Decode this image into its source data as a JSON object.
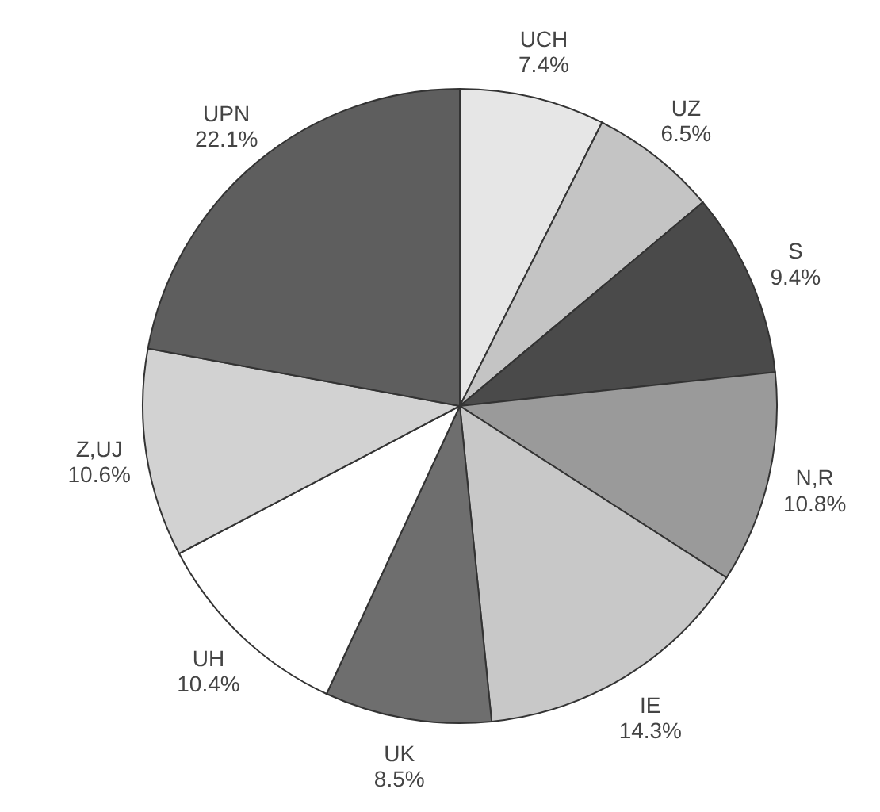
{
  "chart_data": {
    "type": "pie",
    "categories": [
      "UCH",
      "UZ",
      "S",
      "N,R",
      "IE",
      "UK",
      "UH",
      "Z,UJ",
      "UPN"
    ],
    "values": [
      7.4,
      6.5,
      9.4,
      10.8,
      14.3,
      8.5,
      10.4,
      10.6,
      22.1
    ],
    "value_labels": [
      "7.4%",
      "6.5%",
      "9.4%",
      "10.8%",
      "14.3%",
      "8.5%",
      "10.4%",
      "10.6%",
      "22.1%"
    ],
    "colors": [
      "#e6e6e6",
      "#c4c4c4",
      "#4a4a4a",
      "#9a9a9a",
      "#c8c8c8",
      "#6e6e6e",
      "#ffffff",
      "#d2d2d2",
      "#5e5e5e"
    ],
    "legend": false
  }
}
